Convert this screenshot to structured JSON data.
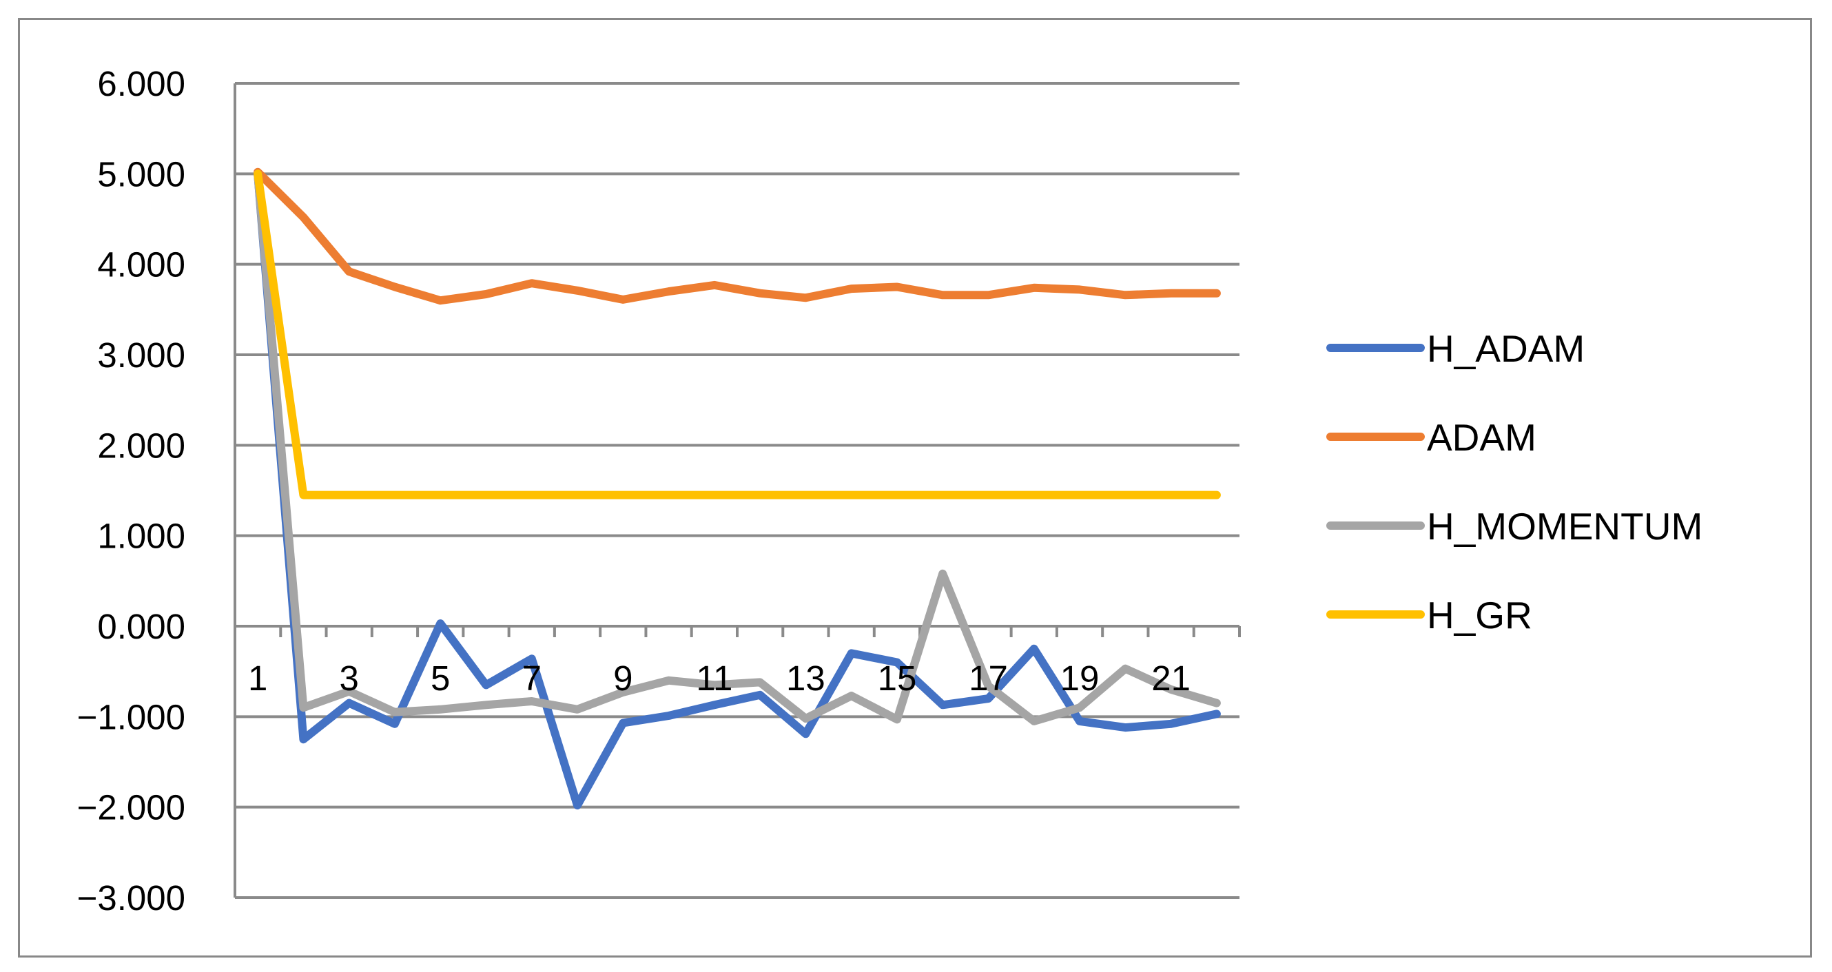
{
  "chart_data": {
    "type": "line",
    "title": "",
    "xlabel": "",
    "ylabel": "",
    "x": [
      1,
      2,
      3,
      4,
      5,
      6,
      7,
      8,
      9,
      10,
      11,
      12,
      13,
      14,
      15,
      16,
      17,
      18,
      19,
      20,
      21,
      22
    ],
    "x_tick_labels": [
      "1",
      "3",
      "5",
      "7",
      "9",
      "11",
      "13",
      "15",
      "17",
      "19",
      "21"
    ],
    "ylim": [
      -3,
      6
    ],
    "y_tick_labels": [
      "6.000",
      "5.000",
      "4.000",
      "3.000",
      "2.000",
      "1.000",
      "0.000",
      "−1.000",
      "−2.000",
      "−3.000"
    ],
    "grid": true,
    "legend_position": "right",
    "series": [
      {
        "name": "H_ADAM",
        "color": "#4472C4",
        "values": [
          5.0,
          -1.25,
          -0.85,
          -1.08,
          0.03,
          -0.65,
          -0.36,
          -1.98,
          -1.07,
          -0.99,
          -0.87,
          -0.76,
          -1.19,
          -0.3,
          -0.4,
          -0.87,
          -0.8,
          -0.25,
          -1.05,
          -1.12,
          -1.08,
          -0.97
        ]
      },
      {
        "name": "ADAM",
        "color": "#ED7D31",
        "values": [
          5.02,
          4.52,
          3.92,
          3.75,
          3.6,
          3.67,
          3.79,
          3.71,
          3.61,
          3.7,
          3.77,
          3.68,
          3.63,
          3.73,
          3.75,
          3.66,
          3.66,
          3.74,
          3.72,
          3.66,
          3.68,
          3.68
        ]
      },
      {
        "name": "H_MOMENTUM",
        "color": "#A5A5A5",
        "values": [
          5.0,
          -0.9,
          -0.72,
          -0.95,
          -0.92,
          -0.87,
          -0.83,
          -0.92,
          -0.73,
          -0.6,
          -0.65,
          -0.62,
          -1.02,
          -0.77,
          -1.03,
          0.58,
          -0.66,
          -1.05,
          -0.9,
          -0.47,
          -0.7,
          -0.85
        ]
      },
      {
        "name": "H_GR",
        "color": "#FFC000",
        "values": [
          5.0,
          1.45,
          1.45,
          1.45,
          1.45,
          1.45,
          1.45,
          1.45,
          1.45,
          1.45,
          1.45,
          1.45,
          1.45,
          1.45,
          1.45,
          1.45,
          1.45,
          1.45,
          1.45,
          1.45,
          1.45,
          1.45
        ]
      }
    ]
  }
}
